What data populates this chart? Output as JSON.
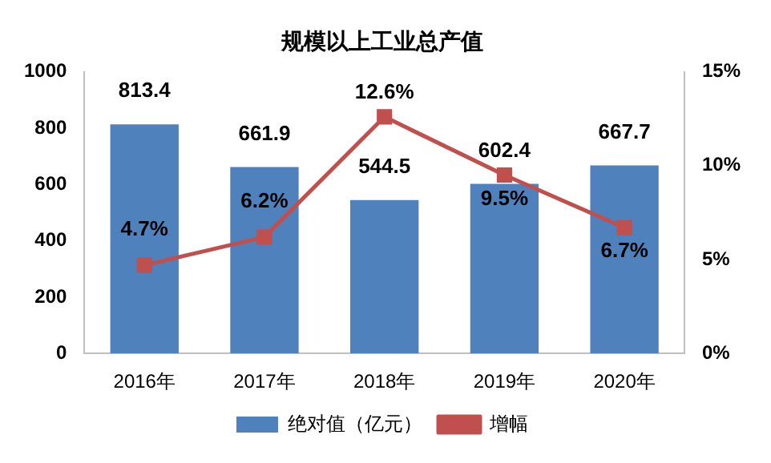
{
  "chart_data": {
    "type": "bar",
    "title": "规模以上工业总产值",
    "categories": [
      "2016年",
      "2017年",
      "2018年",
      "2019年",
      "2020年"
    ],
    "series": [
      {
        "name": "绝对值（亿元）",
        "color": "#4f81bd",
        "values": [
          813.4,
          661.9,
          544.5,
          602.4,
          667.7
        ],
        "value_labels": [
          "813.4",
          "661.9",
          "544.5",
          "602.4",
          "667.7"
        ]
      },
      {
        "name": "增幅",
        "type": "line",
        "axis": "y2",
        "color": "#c0504d",
        "marker": "square",
        "values": [
          4.7,
          6.2,
          12.6,
          9.5,
          6.7
        ],
        "value_labels": [
          "4.7%",
          "6.2%",
          "12.6%",
          "9.5%",
          "6.7%"
        ]
      }
    ],
    "ylim": [
      0,
      1000
    ],
    "yticks": [
      0,
      200,
      400,
      600,
      800,
      1000
    ],
    "y2lim": [
      0,
      15
    ],
    "y2ticks": [
      {
        "value": 0,
        "label": "0%"
      },
      {
        "value": 5,
        "label": "5%"
      },
      {
        "value": 10,
        "label": "10%"
      },
      {
        "value": 15,
        "label": "15%"
      }
    ],
    "grid": false,
    "legend": "bottom"
  }
}
